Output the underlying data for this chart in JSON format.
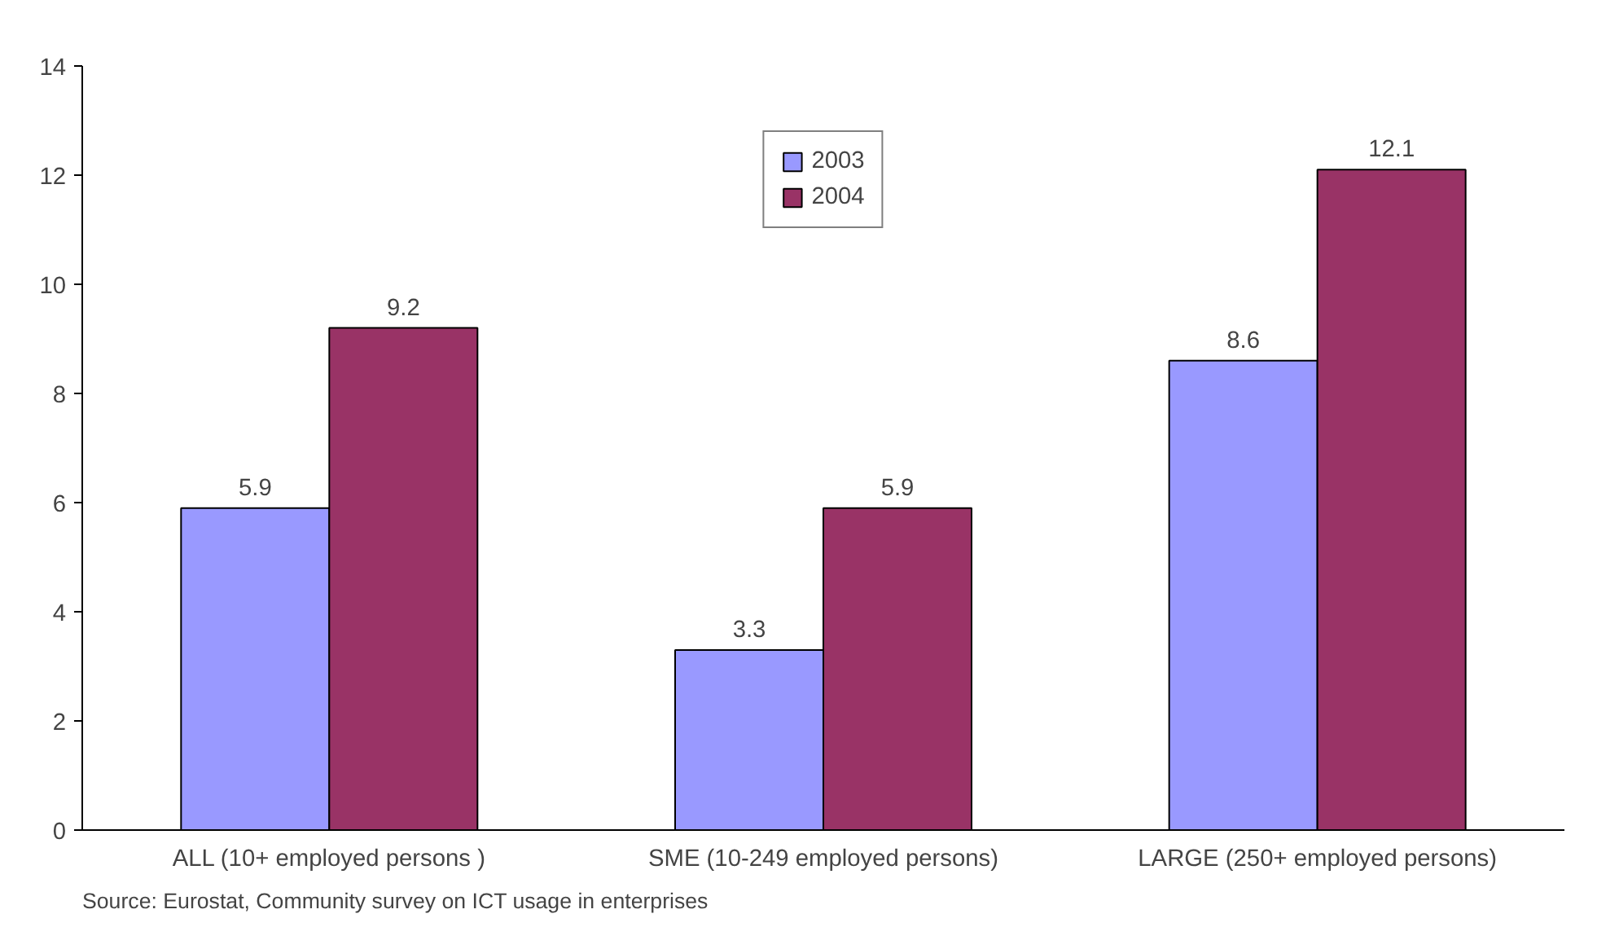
{
  "chart_data": {
    "type": "bar",
    "categories": [
      "ALL (10+ employed persons )",
      "SME (10-249 employed persons)",
      "LARGE (250+ employed persons)"
    ],
    "series": [
      {
        "name": "2003",
        "color": "#9999ff",
        "values": [
          5.9,
          3.3,
          8.6
        ]
      },
      {
        "name": "2004",
        "color": "#993366",
        "values": [
          9.2,
          5.9,
          12.1
        ]
      }
    ],
    "ylim": [
      0,
      14
    ],
    "yticks": [
      0,
      2,
      4,
      6,
      8,
      10,
      12,
      14
    ],
    "data_labels": true,
    "grid": false,
    "legend": "top",
    "annotations": [
      "Source: Eurostat, Community survey on ICT usage in enterprises"
    ]
  }
}
